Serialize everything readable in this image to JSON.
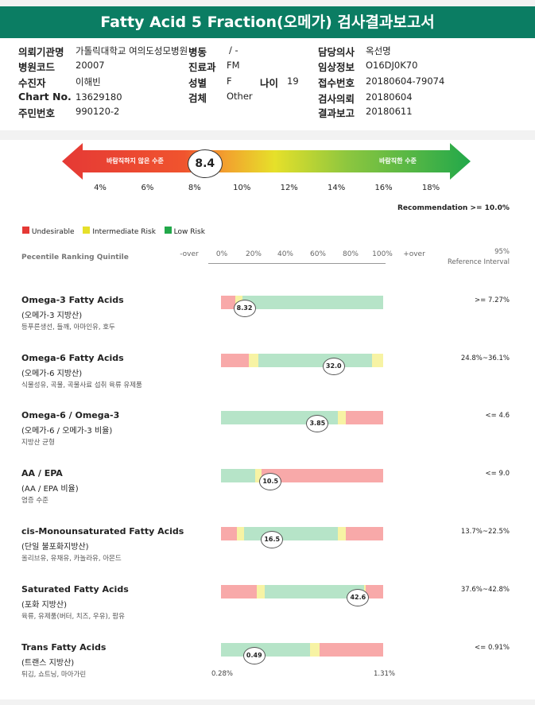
{
  "title": "Fatty Acid 5 Fraction(오메가) 검사결과보고서",
  "info": {
    "institution_label": "의뢰기관명",
    "institution_value": "가톨릭대학교 여의도성모병원",
    "ward_label": "병동",
    "ward_value": "/ -",
    "doctor_label": "담당의사",
    "doctor_value": "옥선명",
    "hospital_code_label": "병원코드",
    "hospital_code_value": "20007",
    "dept_label": "진료과",
    "dept_value": "FM",
    "clinical_label": "임상정보",
    "clinical_value": "O16DJ0K70",
    "examinee_label": "수진자",
    "examinee_value": "이해빈",
    "sex_label": "성별",
    "sex_value": "F",
    "age_label": "나이",
    "age_value": "19",
    "receipt_label": "접수번호",
    "receipt_value": "20180604-79074",
    "chart_label": "Chart No.",
    "chart_value": "13629180",
    "specimen_label": "검체",
    "specimen_value": "Other",
    "request_label": "검사의뢰",
    "request_value": "20180604",
    "id_label": "주민번호",
    "id_value": "990120-2",
    "report_label": "결과보고",
    "report_value": "20180611"
  },
  "gauge": {
    "value": 8.4,
    "value_text": "8.4",
    "left_label": "바람직하지 않은 수준",
    "right_label": "바람직한 수준",
    "ticks": [
      "4%",
      "6%",
      "8%",
      "10%",
      "12%",
      "14%",
      "16%",
      "18%"
    ],
    "tick_values": [
      4,
      6,
      8,
      10,
      12,
      14,
      16,
      18
    ],
    "recommendation": "Recommendation >= 10.0%"
  },
  "legend": {
    "undesirable": "Undesirable",
    "intermediate": "Intermediate Risk",
    "low": "Low Risk",
    "colors": {
      "red": "#e53935",
      "yellow": "#e6e02a",
      "green": "#22a84a",
      "bar_red": "#f8a9a9",
      "bar_yellow": "#f7f3a4",
      "bar_green": "#b6e4c8"
    }
  },
  "scale": {
    "label": "Pecentile Ranking Quintile",
    "ticks": [
      "-over",
      "0%",
      "20%",
      "40%",
      "60%",
      "80%",
      "100%",
      "+over"
    ],
    "ref_header_line1": "95%",
    "ref_header_line2": "Reference Interval"
  },
  "results": [
    {
      "title": "Omega-3 Fatty Acids",
      "subtitle": "(오메가-3 지방산)",
      "note": "등푸른생선, 들깨, 아마인유, 호두",
      "value_text": "8.32",
      "marker_pct": 14,
      "reference": ">= 7.27%",
      "segments": [
        [
          "red",
          9
        ],
        [
          "yellow",
          4
        ],
        [
          "green",
          87
        ]
      ]
    },
    {
      "title": "Omega-6 Fatty Acids",
      "subtitle": "(오메가-6 지방산)",
      "note": "식물성유, 곡물, 곡물사료 섭취 육류 유제품",
      "value_text": "32.0",
      "marker_pct": 69,
      "reference": "24.8%~36.1%",
      "segments": [
        [
          "red",
          17
        ],
        [
          "yellow",
          6
        ],
        [
          "green",
          70
        ],
        [
          "yellow",
          7
        ]
      ]
    },
    {
      "title": "Omega-6 / Omega-3",
      "subtitle": "(오메가-6 / 오메가-3 비율)",
      "note": "지방산 균형",
      "value_text": "3.85",
      "marker_pct": 59,
      "reference": "<= 4.6",
      "segments": [
        [
          "green",
          72
        ],
        [
          "yellow",
          5
        ],
        [
          "red",
          23
        ]
      ]
    },
    {
      "title": "AA / EPA",
      "subtitle": "(AA / EPA 비율)",
      "note": "염증 수준",
      "value_text": "10.5",
      "marker_pct": 30,
      "reference": "<= 9.0",
      "segments": [
        [
          "green",
          21
        ],
        [
          "yellow",
          4
        ],
        [
          "red",
          75
        ]
      ]
    },
    {
      "title": "cis-Monounsaturated Fatty Acids",
      "subtitle": "(단일 불포화지방산)",
      "note": "올리브유, 유채유, 카놀라유, 아몬드",
      "value_text": "16.5",
      "marker_pct": 31,
      "reference": "13.7%~22.5%",
      "segments": [
        [
          "red",
          10
        ],
        [
          "yellow",
          4
        ],
        [
          "green",
          58
        ],
        [
          "yellow",
          5
        ],
        [
          "red",
          23
        ]
      ]
    },
    {
      "title": "Saturated Fatty Acids",
      "subtitle": "(포화 지방산)",
      "note": "육류, 유제품(버터, 치즈, 우유), 팜유",
      "value_text": "42.6",
      "marker_pct": 84,
      "reference": "37.6%~42.8%",
      "segments": [
        [
          "red",
          22
        ],
        [
          "yellow",
          5
        ],
        [
          "green",
          61
        ],
        [
          "yellow",
          1
        ],
        [
          "red",
          11
        ]
      ]
    },
    {
      "title": "Trans Fatty Acids",
      "subtitle": "(트랜스 지방산)",
      "note": "튀김, 쇼트닝, 마아가린",
      "value_text": "0.49",
      "marker_pct": 20,
      "reference": "<= 0.91%",
      "segments": [
        [
          "green",
          55
        ],
        [
          "yellow",
          6
        ],
        [
          "red",
          39
        ]
      ],
      "min_label": "0.28%",
      "max_label": "1.31%"
    }
  ]
}
